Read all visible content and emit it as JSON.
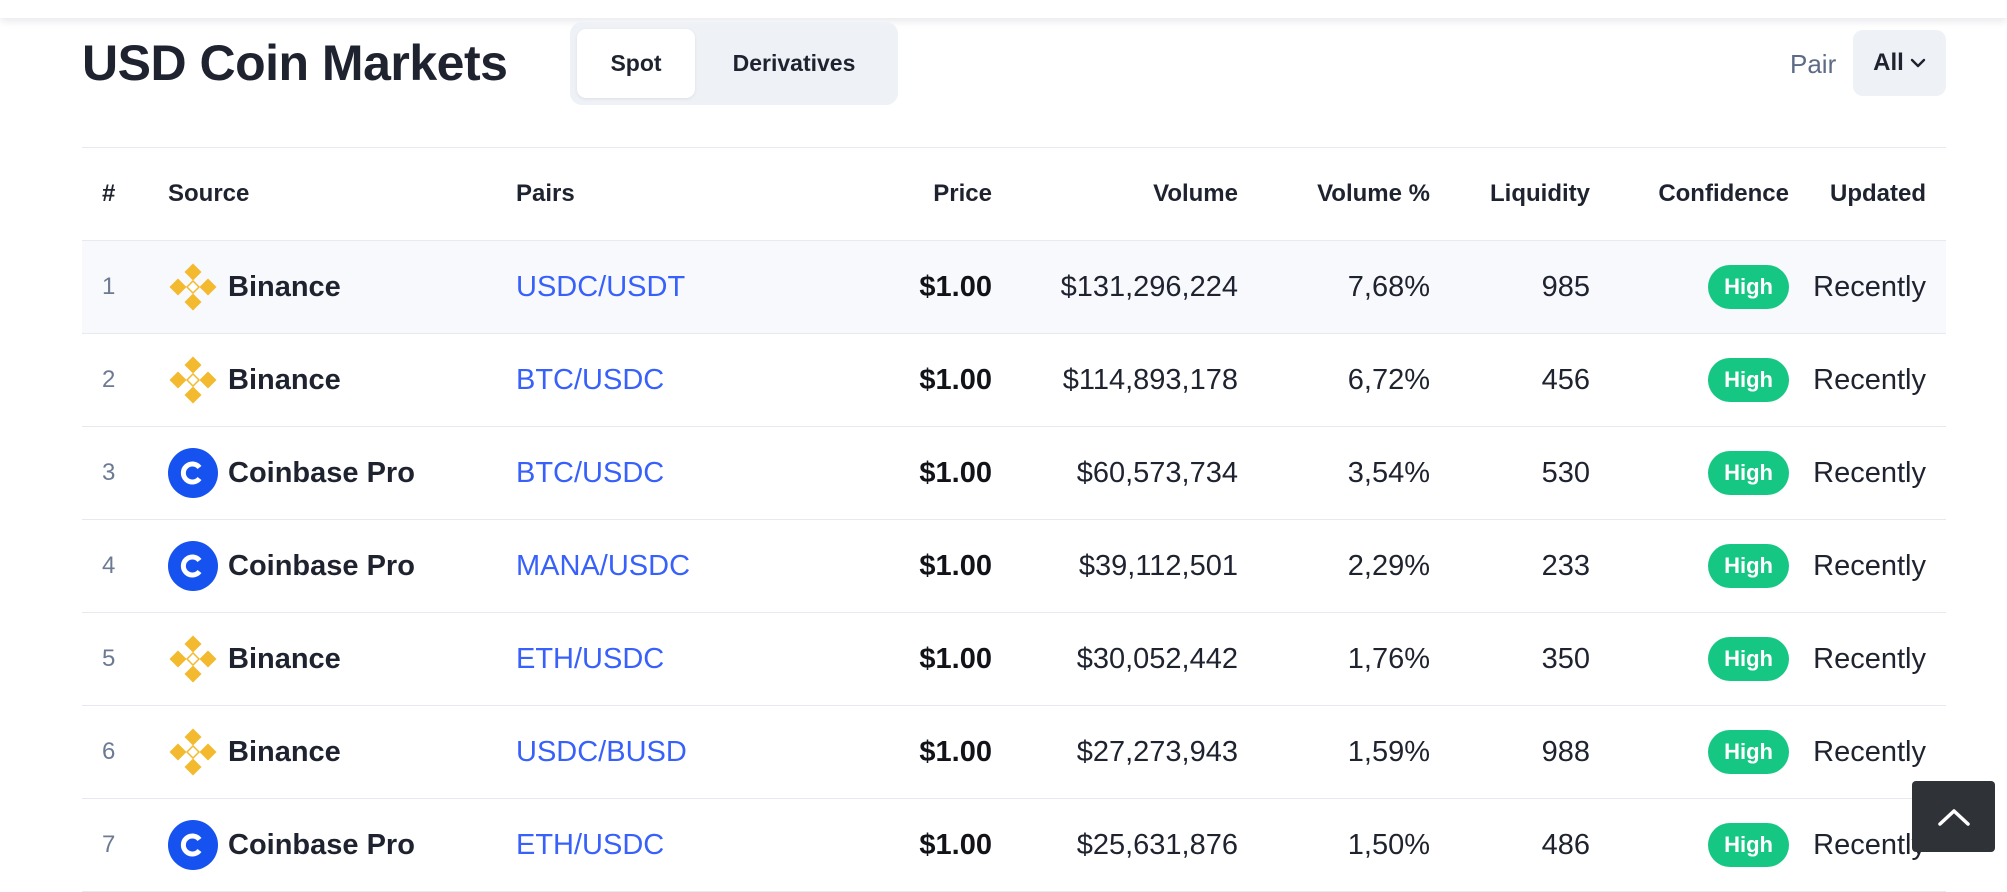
{
  "header": {
    "title": "USD Coin Markets",
    "tabs": [
      "Spot",
      "Derivatives"
    ],
    "active_tab": "Spot",
    "pair_label": "Pair",
    "pair_value": "All"
  },
  "table": {
    "columns": [
      "#",
      "Source",
      "Pairs",
      "Price",
      "Volume",
      "Volume %",
      "Liquidity",
      "Confidence",
      "Updated"
    ],
    "rows": [
      {
        "num": "1",
        "source": "Binance",
        "icon": "binance-icon",
        "pair": "USDC/USDT",
        "price": "$1.00",
        "volume": "$131,296,224",
        "volume_pct": "7,68%",
        "liquidity": "985",
        "confidence": "High",
        "updated": "Recently"
      },
      {
        "num": "2",
        "source": "Binance",
        "icon": "binance-icon",
        "pair": "BTC/USDC",
        "price": "$1.00",
        "volume": "$114,893,178",
        "volume_pct": "6,72%",
        "liquidity": "456",
        "confidence": "High",
        "updated": "Recently"
      },
      {
        "num": "3",
        "source": "Coinbase Pro",
        "icon": "coinbase-icon",
        "pair": "BTC/USDC",
        "price": "$1.00",
        "volume": "$60,573,734",
        "volume_pct": "3,54%",
        "liquidity": "530",
        "confidence": "High",
        "updated": "Recently"
      },
      {
        "num": "4",
        "source": "Coinbase Pro",
        "icon": "coinbase-icon",
        "pair": "MANA/USDC",
        "price": "$1.00",
        "volume": "$39,112,501",
        "volume_pct": "2,29%",
        "liquidity": "233",
        "confidence": "High",
        "updated": "Recently"
      },
      {
        "num": "5",
        "source": "Binance",
        "icon": "binance-icon",
        "pair": "ETH/USDC",
        "price": "$1.00",
        "volume": "$30,052,442",
        "volume_pct": "1,76%",
        "liquidity": "350",
        "confidence": "High",
        "updated": "Recently"
      },
      {
        "num": "6",
        "source": "Binance",
        "icon": "binance-icon",
        "pair": "USDC/BUSD",
        "price": "$1.00",
        "volume": "$27,273,943",
        "volume_pct": "1,59%",
        "liquidity": "988",
        "confidence": "High",
        "updated": "Recently"
      },
      {
        "num": "7",
        "source": "Coinbase Pro",
        "icon": "coinbase-icon",
        "pair": "ETH/USDC",
        "price": "$1.00",
        "volume": "$25,631,876",
        "volume_pct": "1,50%",
        "liquidity": "486",
        "confidence": "High",
        "updated": "Recently"
      }
    ]
  },
  "colors": {
    "accent_link": "#3861fb",
    "confidence_high": "#16c784",
    "binance": "#f3ba2f",
    "coinbase": "#1652f0"
  },
  "icons": {
    "pair_dropdown": "chevron-down-icon",
    "scroll_top": "chevron-up-icon"
  }
}
